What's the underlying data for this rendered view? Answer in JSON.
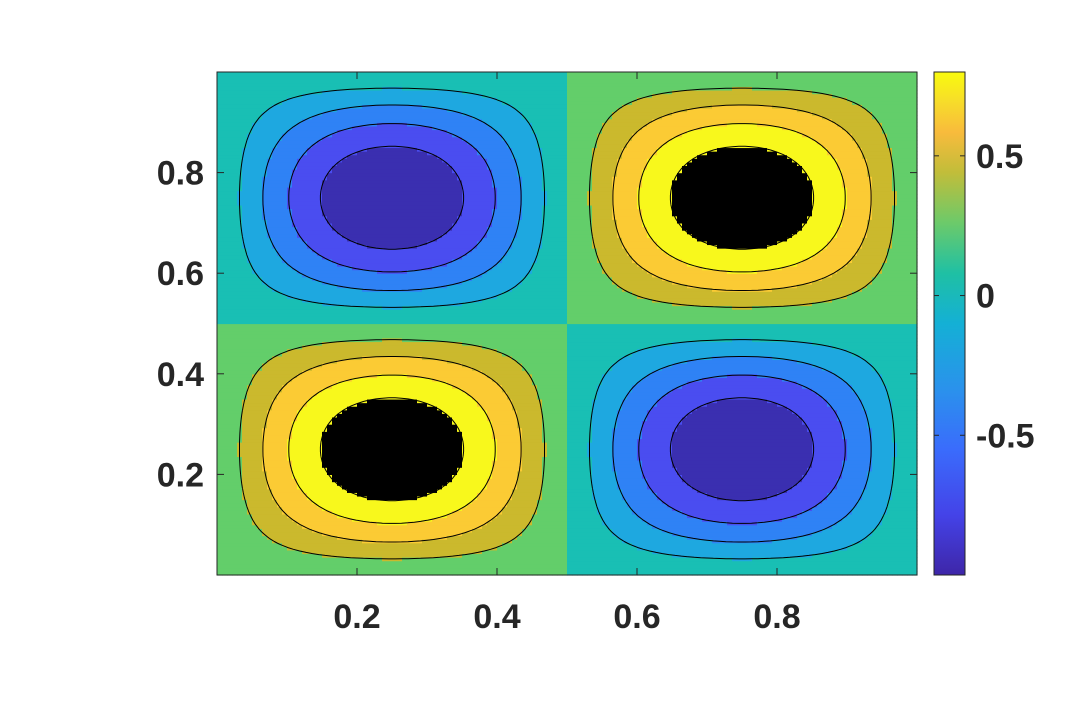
{
  "chart_data": {
    "type": "contour",
    "title": "",
    "xlabel": "",
    "ylabel": "",
    "function": "sin(2*pi*x) * sin(2*pi*y)",
    "xlim": [
      0,
      1
    ],
    "ylim": [
      0,
      1
    ],
    "x_ticks": [
      0.2,
      0.4,
      0.6,
      0.8
    ],
    "y_ticks": [
      0.2,
      0.4,
      0.6,
      0.8
    ],
    "x_tick_labels": [
      "0.2",
      "0.4",
      "0.6",
      "0.8"
    ],
    "y_tick_labels": [
      "0.2",
      "0.4",
      "0.6",
      "0.8"
    ],
    "contour_levels": [
      -0.8,
      -0.6,
      -0.4,
      -0.2,
      0,
      0.2,
      0.4,
      0.6,
      0.8
    ],
    "fill_colors": [
      "#3a2fb0",
      "#4a4df0",
      "#2f82f5",
      "#1ea8e0",
      "#19bfb4",
      "#63ce6a",
      "#cbb92d",
      "#fbcb34",
      "#f8f81c"
    ],
    "extrema": [
      {
        "x": 0.25,
        "y": 0.75,
        "value": -1
      },
      {
        "x": 0.75,
        "y": 0.75,
        "value": 1
      },
      {
        "x": 0.25,
        "y": 0.25,
        "value": 1
      },
      {
        "x": 0.75,
        "y": 0.25,
        "value": -1
      }
    ],
    "colorbar": {
      "range": [
        -1,
        0.8
      ],
      "ticks": [
        0.5,
        0,
        -0.5
      ],
      "tick_labels": [
        "0.5",
        "0",
        "-0.5"
      ],
      "colormap": "parula"
    },
    "grid": false,
    "legend": false
  }
}
